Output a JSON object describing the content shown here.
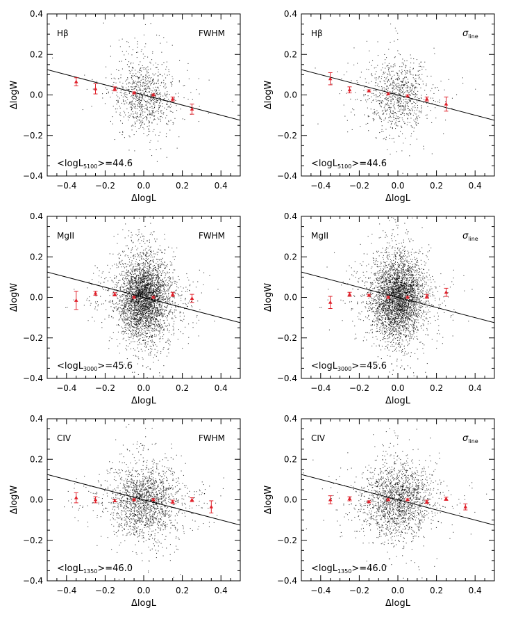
{
  "chart_data": [
    {
      "type": "scatter",
      "line": "Hβ",
      "measure": "FWHM",
      "annotation_prefix": "<logL",
      "annotation_sub": "5100",
      "annotation_suffix": ">=44.6",
      "n_points": 1500,
      "scatter_sigma": [
        0.07,
        0.08
      ],
      "binned": {
        "x": [
          -0.35,
          -0.25,
          -0.15,
          -0.05,
          0.05,
          0.15,
          0.25
        ],
        "y": [
          0.065,
          0.03,
          0.03,
          0.01,
          0.0,
          -0.02,
          -0.07
        ],
        "err": [
          0.02,
          0.025,
          0.01,
          0.005,
          0.005,
          0.01,
          0.025
        ]
      }
    },
    {
      "type": "scatter",
      "line": "Hβ",
      "measure": "σline",
      "annotation_prefix": "<logL",
      "annotation_sub": "5100",
      "annotation_suffix": ">=44.6",
      "n_points": 1500,
      "scatter_sigma": [
        0.07,
        0.08
      ],
      "binned": {
        "x": [
          -0.35,
          -0.25,
          -0.15,
          -0.05,
          0.05,
          0.15,
          0.25
        ],
        "y": [
          0.08,
          0.025,
          0.02,
          0.005,
          -0.005,
          -0.02,
          -0.045
        ],
        "err": [
          0.03,
          0.015,
          0.005,
          0.005,
          0.005,
          0.01,
          0.035
        ]
      }
    },
    {
      "type": "scatter",
      "line": "MgII",
      "measure": "FWHM",
      "annotation_prefix": "<logL",
      "annotation_sub": "3000",
      "annotation_suffix": ">=45.6",
      "n_points": 6000,
      "scatter_sigma": [
        0.06,
        0.09
      ],
      "binned": {
        "x": [
          -0.35,
          -0.25,
          -0.15,
          -0.05,
          0.05,
          0.15,
          0.25
        ],
        "y": [
          -0.015,
          0.02,
          0.015,
          0.0,
          0.0,
          0.015,
          -0.005
        ],
        "err": [
          0.045,
          0.01,
          0.008,
          0.005,
          0.005,
          0.01,
          0.02
        ]
      }
    },
    {
      "type": "scatter",
      "line": "MgII",
      "measure": "σline",
      "annotation_prefix": "<logL",
      "annotation_sub": "3000",
      "annotation_suffix": ">=45.6",
      "n_points": 6000,
      "scatter_sigma": [
        0.06,
        0.09
      ],
      "binned": {
        "x": [
          -0.35,
          -0.25,
          -0.15,
          -0.05,
          0.05,
          0.15,
          0.25
        ],
        "y": [
          -0.025,
          0.015,
          0.01,
          0.0,
          0.0,
          0.005,
          0.025
        ],
        "err": [
          0.03,
          0.01,
          0.005,
          0.005,
          0.005,
          0.01,
          0.02
        ]
      }
    },
    {
      "type": "scatter",
      "line": "CIV",
      "measure": "FWHM",
      "annotation_prefix": "<logL",
      "annotation_sub": "1350",
      "annotation_suffix": ">=46.0",
      "n_points": 3000,
      "scatter_sigma": [
        0.08,
        0.08
      ],
      "binned": {
        "x": [
          -0.35,
          -0.25,
          -0.15,
          -0.05,
          0.05,
          0.15,
          0.25,
          0.35
        ],
        "y": [
          0.01,
          0.0,
          -0.005,
          0.0,
          0.0,
          -0.01,
          0.0,
          -0.035
        ],
        "err": [
          0.025,
          0.015,
          0.005,
          0.005,
          0.005,
          0.008,
          0.01,
          0.03
        ]
      }
    },
    {
      "type": "scatter",
      "line": "CIV",
      "measure": "σline",
      "annotation_prefix": "<logL",
      "annotation_sub": "1350",
      "annotation_suffix": ">=46.0",
      "n_points": 3000,
      "scatter_sigma": [
        0.08,
        0.08
      ],
      "binned": {
        "x": [
          -0.35,
          -0.25,
          -0.15,
          -0.05,
          0.05,
          0.15,
          0.25,
          0.35
        ],
        "y": [
          0.0,
          0.005,
          -0.01,
          0.0,
          0.0,
          -0.01,
          0.005,
          -0.035
        ],
        "err": [
          0.02,
          0.01,
          0.005,
          0.005,
          0.005,
          0.008,
          0.008,
          0.015
        ]
      }
    }
  ],
  "axes": {
    "xlabel": "ΔlogL",
    "ylabel": "ΔlogW",
    "xlim": [
      -0.5,
      0.5
    ],
    "ylim": [
      -0.4,
      0.4
    ],
    "xticks": [
      -0.4,
      -0.2,
      0.0,
      0.2,
      0.4
    ],
    "xtick_labels": [
      "−0.4",
      "−0.2",
      "0.0",
      "0.2",
      "0.4"
    ],
    "yticks": [
      -0.4,
      -0.2,
      0.0,
      0.2,
      0.4
    ],
    "ytick_labels": [
      "−0.4",
      "−0.2",
      "0.0",
      "0.2",
      "0.4"
    ]
  },
  "fit_line": {
    "slope": -0.25,
    "intercept": 0.0
  },
  "colors": {
    "points": "#000000",
    "binned": "#e0202a",
    "line": "#000000"
  }
}
